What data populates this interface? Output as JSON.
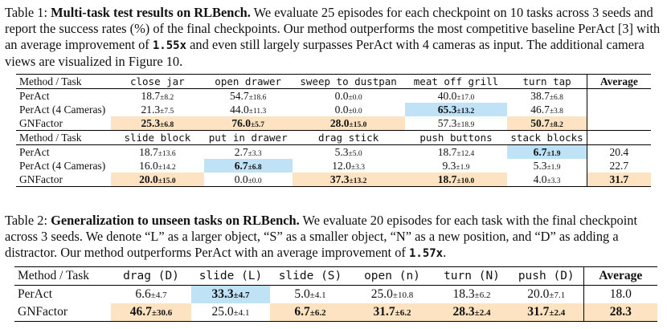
{
  "table1": {
    "label": "Table 1:",
    "title": "Multi-task test results on RLBench.",
    "caption_a": " We evaluate 25 episodes for each checkpoint on 10 tasks across 3 seeds and report the success rates (%) of the final checkpoints. Our method outperforms the most competitive baseline PerAct [3] with an average improvement of ",
    "improvement": "1.55x",
    "caption_b": " and even still largely surpasses PerAct with 4 cameras as input. The additional camera views are visualized in Figure 10.",
    "header_label": "Method / Task",
    "average_label": "Average",
    "block1": {
      "tasks": [
        "close jar",
        "open drawer",
        "sweep to dustpan",
        "meat off grill",
        "turn tap"
      ],
      "rows": [
        {
          "method": "PerAct",
          "cells": [
            [
              "18.7",
              "±8.2"
            ],
            [
              "54.7",
              "±18.6"
            ],
            [
              "0.0",
              "±0.0"
            ],
            [
              "40.0",
              "±17.0"
            ],
            [
              "38.7",
              "±6.8"
            ]
          ],
          "avg": ""
        },
        {
          "method": "PerAct (4 Cameras)",
          "cells": [
            [
              "21.3",
              "±7.5"
            ],
            [
              "44.0",
              "±11.3"
            ],
            [
              "0.0",
              "±0.0"
            ],
            [
              "65.3",
              "±13.2"
            ],
            [
              "46.7",
              "±3.8"
            ]
          ],
          "avg": ""
        },
        {
          "method": "GNFactor",
          "cells": [
            [
              "25.3",
              "±6.8"
            ],
            [
              "76.0",
              "±5.7"
            ],
            [
              "28.0",
              "±15.0"
            ],
            [
              "57.3",
              "±18.9"
            ],
            [
              "50.7",
              "±8.2"
            ]
          ],
          "avg": ""
        }
      ]
    },
    "block2": {
      "tasks": [
        "slide block",
        "put in drawer",
        "drag stick",
        "push buttons",
        "stack blocks"
      ],
      "rows": [
        {
          "method": "PerAct",
          "cells": [
            [
              "18.7",
              "±13.6"
            ],
            [
              "2.7",
              "±3.3"
            ],
            [
              "5.3",
              "±5.0"
            ],
            [
              "18.7",
              "±12.4"
            ],
            [
              "6.7",
              "±1.9"
            ]
          ],
          "avg": "20.4"
        },
        {
          "method": "PerAct (4 Cameras)",
          "cells": [
            [
              "16.0",
              "±14.2"
            ],
            [
              "6.7",
              "±6.8"
            ],
            [
              "12.0",
              "±3.3"
            ],
            [
              "9.3",
              "±1.9"
            ],
            [
              "5.3",
              "±1.9"
            ]
          ],
          "avg": "22.7"
        },
        {
          "method": "GNFactor",
          "cells": [
            [
              "20.0",
              "±15.0"
            ],
            [
              "0.0",
              "±0.0"
            ],
            [
              "37.3",
              "±13.2"
            ],
            [
              "18.7",
              "±10.0"
            ],
            [
              "4.0",
              "±3.3"
            ]
          ],
          "avg": "31.7"
        }
      ]
    }
  },
  "table2": {
    "label": "Table 2:",
    "title": "Generalization to unseen tasks on RLBench.",
    "caption_a": " We evaluate 20 episodes for each task with the final checkpoint across 3 seeds. We denote “L” as a larger object, “S” as a smaller object, “N” as a new position, and “D” as adding a distractor. Our method outperforms PerAct with an average improvement of ",
    "improvement": "1.57x",
    "caption_b": ".",
    "header_label": "Method / Task",
    "average_label": "Average",
    "tasks": [
      "drag (D)",
      "slide (L)",
      "slide (S)",
      "open (n)",
      "turn (N)",
      "push (D)"
    ],
    "rows": [
      {
        "method": "PerAct",
        "cells": [
          [
            "6.6",
            "±4.7"
          ],
          [
            "33.3",
            "±4.7"
          ],
          [
            "5.0",
            "±4.1"
          ],
          [
            "25.0",
            "±10.8"
          ],
          [
            "18.3",
            "±6.2"
          ],
          [
            "20.0",
            "±7.1"
          ]
        ],
        "avg": "18.0"
      },
      {
        "method": "GNFactor",
        "cells": [
          [
            "46.7",
            "±30.6"
          ],
          [
            "25.0",
            "±4.1"
          ],
          [
            "6.7",
            "±6.2"
          ],
          [
            "31.7",
            "±6.2"
          ],
          [
            "28.3",
            "±2.4"
          ],
          [
            "31.7",
            "±2.4"
          ]
        ],
        "avg": "28.3"
      }
    ]
  },
  "highlight_colors": {
    "best": "#fde3c2",
    "baseline_best": "#bfe2f7"
  }
}
